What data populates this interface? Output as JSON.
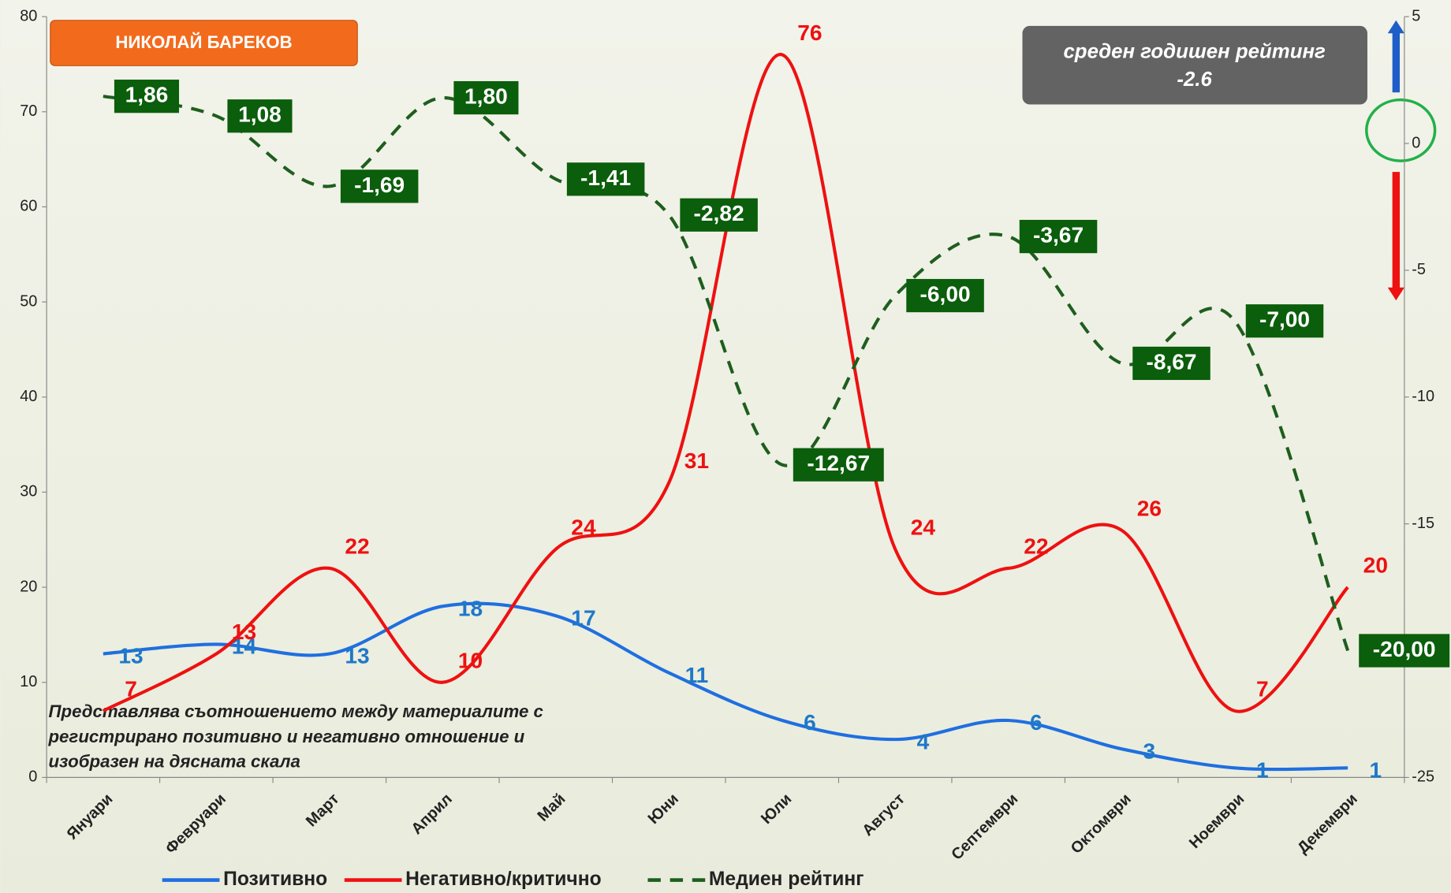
{
  "chart_data": {
    "type": "line",
    "title": "НИКОЛАЙ БАРЕКОВ",
    "rating_label": "среден годишен рейтинг",
    "rating_value": -2.6,
    "note": [
      "Представлява съотношението между материалите с",
      "регистрирано позитивно и негативно отношение и",
      "изобразен на дясната скала"
    ],
    "categories": [
      "Януари",
      "Февруари",
      "Март",
      "Април",
      "Май",
      "Юни",
      "Юли",
      "Август",
      "Септември",
      "Октомври",
      "Ноември",
      "Декември"
    ],
    "series": [
      {
        "name": "Позитивно",
        "color": "#1f6fe0",
        "values": [
          13,
          14,
          13,
          18,
          17,
          11,
          6,
          4,
          6,
          3,
          1,
          1
        ]
      },
      {
        "name": "Негативно/критично",
        "color": "#ee1111",
        "values": [
          7,
          13,
          22,
          10,
          24,
          31,
          76,
          24,
          22,
          26,
          7,
          20
        ]
      },
      {
        "name": "Медиен рейтинг",
        "color": "#1e5e1e",
        "axis": "y2",
        "dashed": true,
        "values": [
          1.86,
          1.08,
          -1.69,
          1.8,
          -1.41,
          -2.82,
          -12.67,
          -6.0,
          -3.67,
          -8.67,
          -7.0,
          -20.0
        ],
        "value_labels": [
          "1,86",
          "1,08",
          "-1,69",
          "1,80",
          "-1,41",
          "-2,82",
          "-12,67",
          "-6,00",
          "-3,67",
          "-8,67",
          "-7,00",
          "-20,00"
        ]
      }
    ],
    "ylim": [
      0,
      80
    ],
    "yticks": [
      0,
      10,
      20,
      30,
      40,
      50,
      60,
      70,
      80
    ],
    "y2lim": [
      -25,
      5
    ],
    "y2ticks": [
      5,
      0,
      -5,
      -10,
      -15,
      -20,
      -25
    ]
  }
}
